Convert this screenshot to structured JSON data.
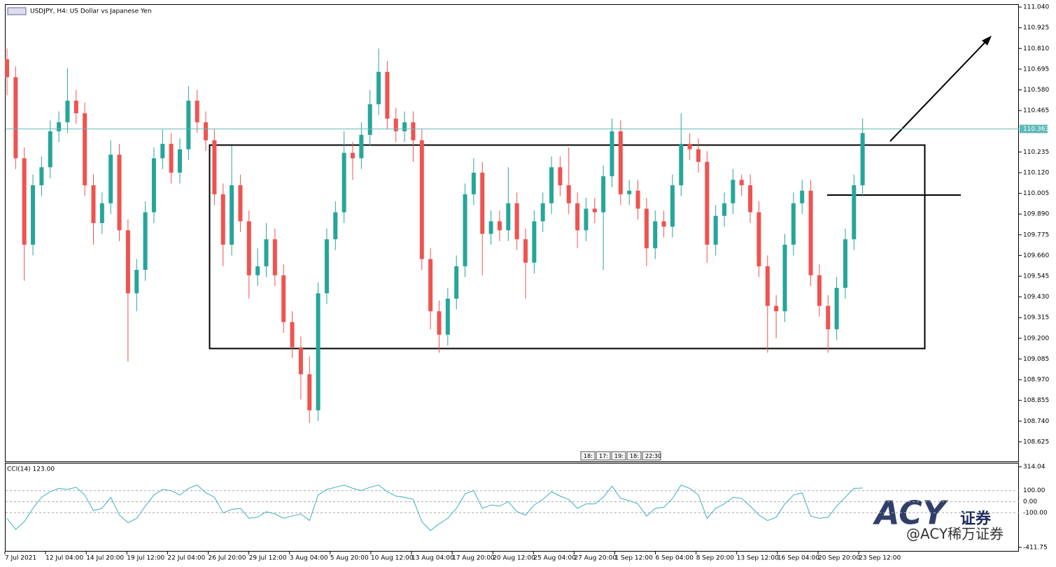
{
  "chart_data": {
    "type": "candlestick",
    "title": "USDJPY, H4:  US Dollar vs Japanese Yen",
    "colors": {
      "up": "#26a69a",
      "down": "#ef5350",
      "price_line": "#5fb8b8",
      "indicator": "#3bb0c0"
    },
    "open": [
      110.75,
      110.65,
      110.2,
      109.72,
      110.05,
      110.15,
      110.35,
      110.4,
      110.52,
      110.45,
      110.05,
      109.84,
      109.95,
      110.22,
      109.8,
      109.45,
      109.58,
      109.9,
      110.2,
      110.28,
      110.12,
      110.25,
      110.52,
      110.4,
      110.3,
      110,
      109.72,
      110.05,
      109.85,
      109.55,
      109.6,
      109.75,
      109.55,
      109.29,
      109.15,
      109,
      108.8,
      109.45,
      109.75,
      109.9,
      110.23,
      110.2,
      110.33,
      110.5,
      110.68,
      110.42,
      110.35,
      110.4,
      110.3,
      109.64,
      109.35,
      109.22,
      109.42,
      109.6,
      110,
      110.12,
      109.78,
      109.85,
      109.8,
      109.95,
      109.75,
      109.62,
      109.85,
      109.95,
      110.15,
      110.05,
      109.95,
      109.8,
      109.92,
      109.9,
      110.1,
      110.35,
      110,
      110.02,
      109.92,
      109.7,
      109.85,
      109.82,
      110.05,
      110.28,
      110.25,
      110.18,
      109.72,
      109.88,
      109.95,
      110.08,
      110.05,
      109.9,
      109.6,
      109.38,
      109.35,
      109.72,
      109.95,
      110.02,
      109.55,
      109.38,
      109.25,
      109.48,
      109.75,
      110.05
    ],
    "high": [
      110.81,
      110.71,
      110.26,
      110.11,
      110.21,
      110.41,
      110.46,
      110.7,
      110.58,
      110.51,
      110.11,
      110.01,
      110.3,
      110.28,
      109.86,
      109.64,
      109.96,
      110.26,
      110.36,
      110.34,
      110.31,
      110.6,
      110.58,
      110.46,
      110.36,
      110.06,
      110.27,
      110.11,
      109.91,
      109.7,
      109.84,
      109.81,
      109.61,
      109.35,
      109.21,
      109.1,
      109.51,
      109.81,
      109.96,
      110.35,
      110.29,
      110.4,
      110.58,
      110.81,
      110.74,
      110.48,
      110.46,
      110.46,
      110.36,
      109.7,
      109.41,
      109.48,
      109.66,
      110.06,
      110.2,
      110.18,
      109.91,
      109.91,
      110.15,
      110.01,
      109.81,
      109.91,
      110.01,
      110.21,
      110.21,
      110.26,
      110.01,
      109.98,
      109.98,
      110.16,
      110.42,
      110.41,
      110.08,
      110.08,
      109.98,
      109.91,
      109.91,
      110.11,
      110.45,
      110.34,
      110.31,
      110.24,
      109.94,
      110.01,
      110.14,
      110.11,
      110.11,
      109.96,
      109.66,
      109.44,
      109.78,
      110.01,
      110.08,
      110.08,
      109.61,
      109.44,
      109.54,
      109.81,
      110.11,
      110.42
    ],
    "low": [
      110.55,
      110.14,
      109.52,
      109.66,
      109.99,
      110.09,
      110.29,
      110.34,
      110.39,
      109.99,
      109.72,
      109.78,
      109.89,
      109.74,
      109.07,
      109.35,
      109.52,
      109.84,
      110.14,
      110.06,
      110.06,
      110.19,
      110.34,
      110.24,
      109.94,
      109.6,
      109.66,
      109.79,
      109.42,
      109.49,
      109.54,
      109.49,
      109.23,
      109.09,
      108.86,
      108.73,
      108.74,
      109.39,
      109.69,
      109.84,
      110.08,
      110.14,
      110.27,
      110.44,
      110.36,
      110.29,
      110.29,
      110.18,
      109.58,
      109.25,
      109.12,
      109.16,
      109.36,
      109.54,
      109.94,
      109.55,
      109.72,
      109.74,
      109.74,
      109.69,
      109.42,
      109.56,
      109.79,
      109.89,
      109.99,
      109.89,
      109.7,
      109.74,
      109.84,
      109.58,
      110.04,
      109.94,
      109.94,
      109.86,
      109.6,
      109.64,
      109.76,
      109.76,
      109.99,
      110.19,
      110.12,
      109.62,
      109.66,
      109.82,
      109.89,
      109.99,
      109.84,
      109.54,
      109.12,
      109.2,
      109.29,
      109.66,
      109.89,
      109.49,
      109.32,
      109.12,
      109.19,
      109.42,
      109.69,
      109.99
    ],
    "close": [
      110.65,
      110.2,
      109.72,
      110.05,
      110.15,
      110.35,
      110.4,
      110.52,
      110.45,
      110.05,
      109.84,
      109.95,
      110.22,
      109.8,
      109.45,
      109.58,
      109.9,
      110.2,
      110.28,
      110.12,
      110.25,
      110.52,
      110.4,
      110.3,
      110,
      109.72,
      110.05,
      109.85,
      109.55,
      109.6,
      109.75,
      109.55,
      109.29,
      109.15,
      109,
      108.8,
      109.45,
      109.75,
      109.9,
      110.23,
      110.2,
      110.33,
      110.5,
      110.68,
      110.42,
      110.35,
      110.4,
      110.3,
      109.64,
      109.35,
      109.22,
      109.42,
      109.6,
      110,
      110.12,
      109.78,
      109.85,
      109.8,
      109.95,
      109.75,
      109.62,
      109.85,
      109.95,
      110.15,
      110.05,
      109.95,
      109.8,
      109.92,
      109.9,
      110.1,
      110.35,
      110,
      110.02,
      109.92,
      109.7,
      109.85,
      109.82,
      110.05,
      110.28,
      110.25,
      110.18,
      109.72,
      109.88,
      109.95,
      110.08,
      110.05,
      109.9,
      109.6,
      109.38,
      109.35,
      109.72,
      109.95,
      110.02,
      109.55,
      109.38,
      109.25,
      109.48,
      109.75,
      110.05,
      110.34
    ],
    "ylim": [
      108.512,
      111.052
    ],
    "yticks": [
      {
        "value": 111.04,
        "label": "111.040"
      },
      110.925,
      {
        "value": 110.81,
        "label": "110.810"
      },
      110.695,
      {
        "value": 110.58,
        "label": "110.580"
      },
      110.465,
      110.235,
      {
        "value": 110.12,
        "label": "110.120"
      },
      110.005,
      {
        "value": 109.89,
        "label": "109.890"
      },
      109.775,
      {
        "value": 109.66,
        "label": "109.660"
      },
      109.545,
      {
        "value": 109.43,
        "label": "109.430"
      },
      109.315,
      {
        "value": 109.2,
        "label": "109.200"
      },
      109.085,
      {
        "value": 108.97,
        "label": "108.970"
      },
      108.855,
      {
        "value": 108.74,
        "label": "108.740"
      },
      108.625
    ],
    "current_price": 110.363,
    "x_labels": [
      "7 Jul 2021",
      "12 Jul 04:00",
      "14 Jul 20:00",
      "19 Jul 12:00",
      "22 Jul 04:00",
      "26 Jul 20:00",
      "29 Jul 12:00",
      "3 Aug 04:00",
      "5 Aug 20:00",
      "10 Aug 12:00",
      "13 Aug 04:00",
      "17 Aug 20:00",
      "20 Aug 12:00",
      "25 Aug 04:00",
      "27 Aug 20:00",
      "1 Sep 12:00",
      "6 Sep 04:00",
      "8 Sep 20:00",
      "13 Sep 12:00",
      "16 Sep 04:00",
      "20 Sep 20:00",
      "23 Sep 12:00"
    ],
    "scroll_tabs": [
      "18:",
      "17:",
      "19:",
      "18:",
      "22:30"
    ],
    "indicator": {
      "label": "CCI(14) 123.00",
      "values": [
        -150,
        -250,
        -180,
        -60,
        40,
        90,
        120,
        110,
        130,
        60,
        -80,
        -60,
        40,
        -120,
        -190,
        -150,
        -40,
        60,
        110,
        100,
        60,
        120,
        150,
        80,
        40,
        -100,
        -70,
        -60,
        -150,
        -140,
        -90,
        -110,
        -150,
        -130,
        -110,
        -170,
        60,
        110,
        130,
        150,
        120,
        100,
        130,
        150,
        90,
        50,
        40,
        20,
        -180,
        -260,
        -200,
        -150,
        -60,
        70,
        100,
        -60,
        -30,
        -40,
        0,
        -90,
        -120,
        -30,
        20,
        90,
        50,
        20,
        -60,
        -20,
        -20,
        40,
        140,
        30,
        10,
        -20,
        -130,
        -60,
        -50,
        30,
        150,
        120,
        60,
        -150,
        -60,
        -20,
        40,
        30,
        -40,
        -120,
        -170,
        -140,
        -20,
        60,
        80,
        -130,
        -150,
        -140,
        -40,
        40,
        120,
        123
      ],
      "ylim": [
        -443.75,
        343.75
      ],
      "yticks": [
        314.04,
        {
          "value": 100,
          "label": "100.00"
        },
        {
          "value": 0,
          "label": "0.00"
        },
        {
          "value": -100,
          "label": "-100.00"
        },
        -411.75
      ]
    },
    "watermark": {
      "brand": "ACY",
      "suffix": "证券",
      "handle": "@ACY稀万证券"
    }
  }
}
